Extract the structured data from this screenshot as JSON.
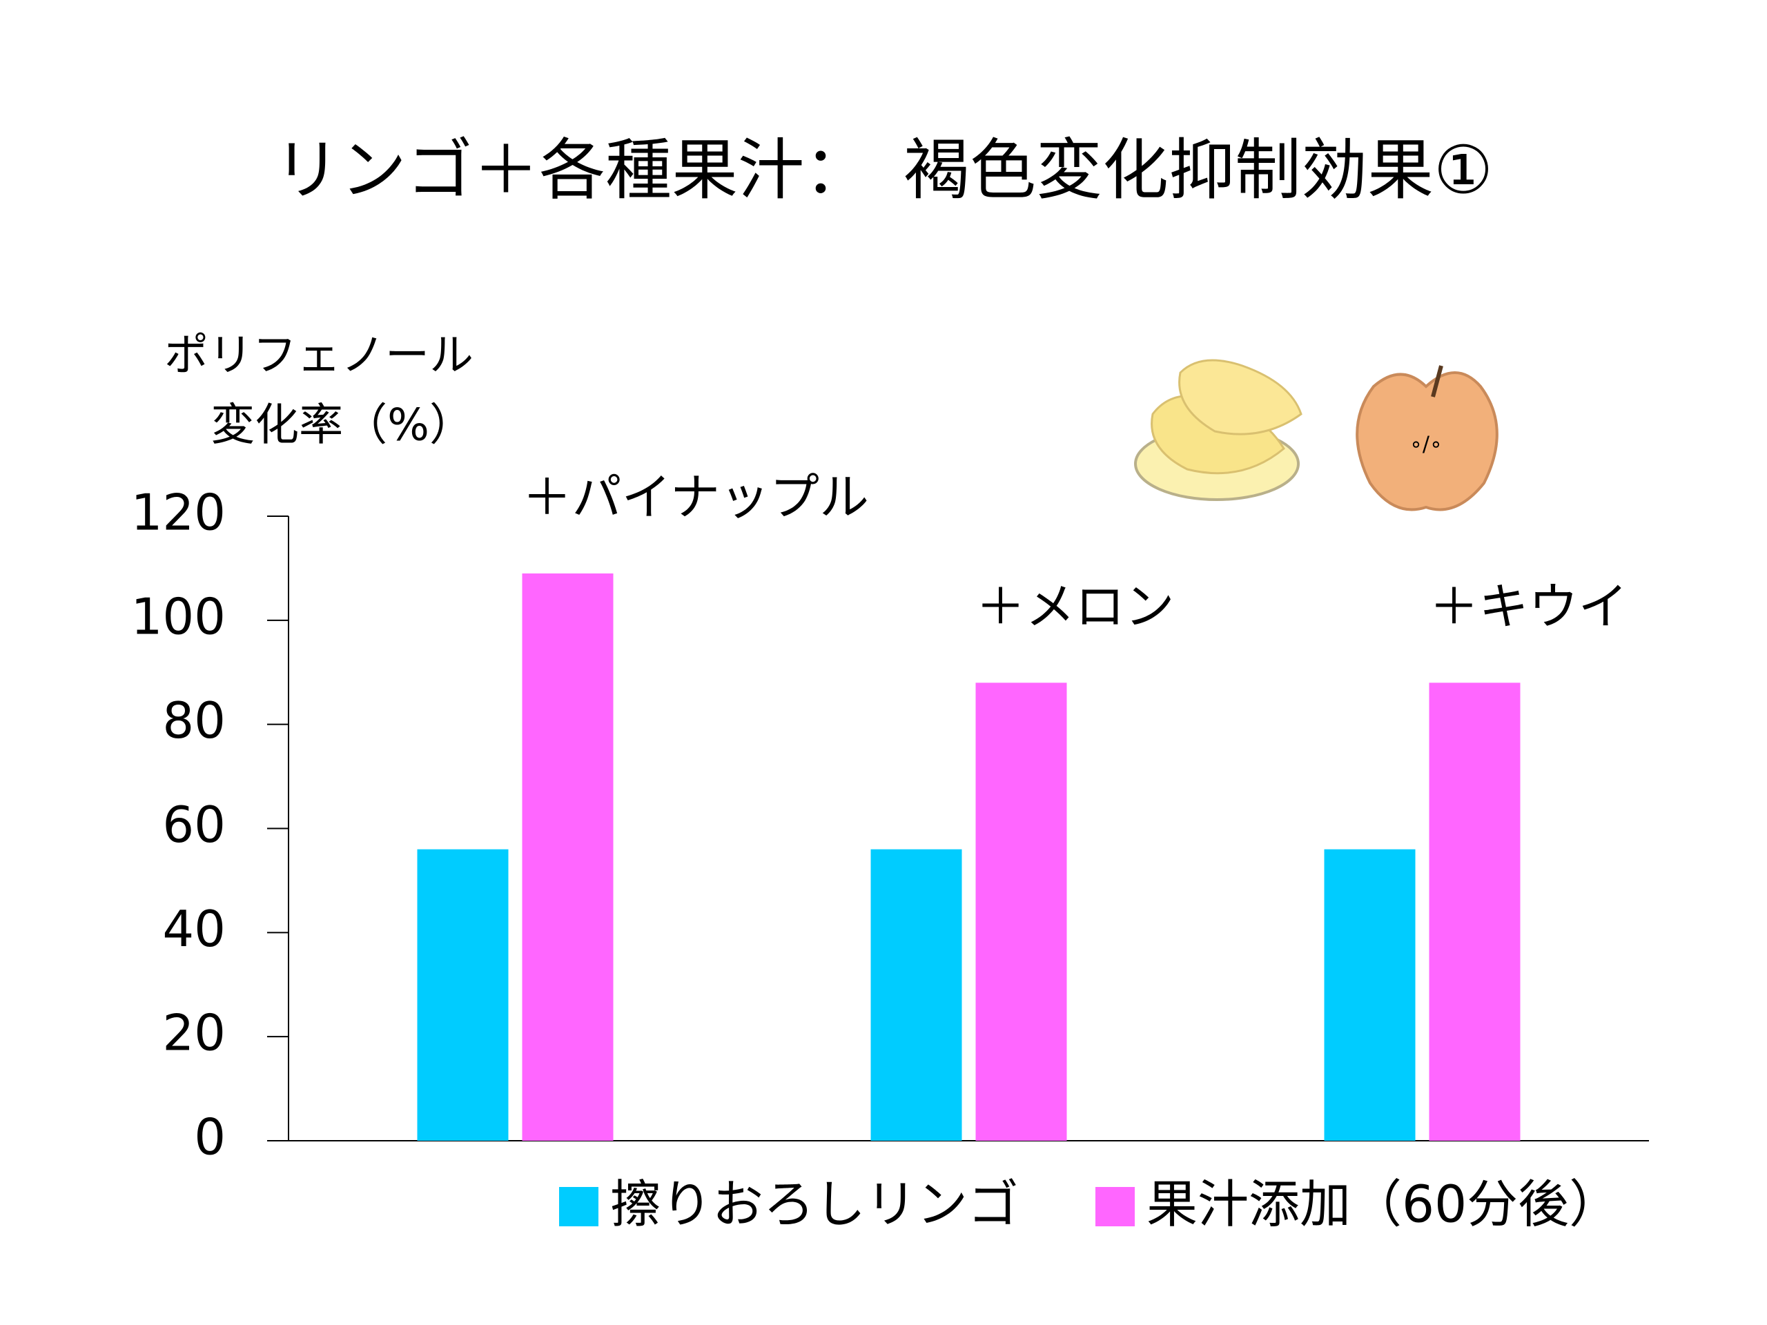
{
  "chart_data": {
    "type": "bar",
    "title": "リンゴ＋各種果汁：　褐色変化抑制効果①",
    "ylabel": [
      "ポリフェノール",
      "変化率（%）"
    ],
    "categories": [
      "＋パイナップル",
      "＋メロン",
      "＋キウイ"
    ],
    "series": [
      {
        "name": "擦りおろしリンゴ",
        "color": "#00ccff",
        "values": [
          56,
          56,
          56
        ]
      },
      {
        "name": "果汁添加（60分後）",
        "color": "#ff66ff",
        "values": [
          109,
          88,
          88
        ]
      }
    ],
    "ylim": [
      0,
      120
    ],
    "yticks": [
      0,
      20,
      40,
      60,
      80,
      100,
      120
    ],
    "grid": false
  }
}
